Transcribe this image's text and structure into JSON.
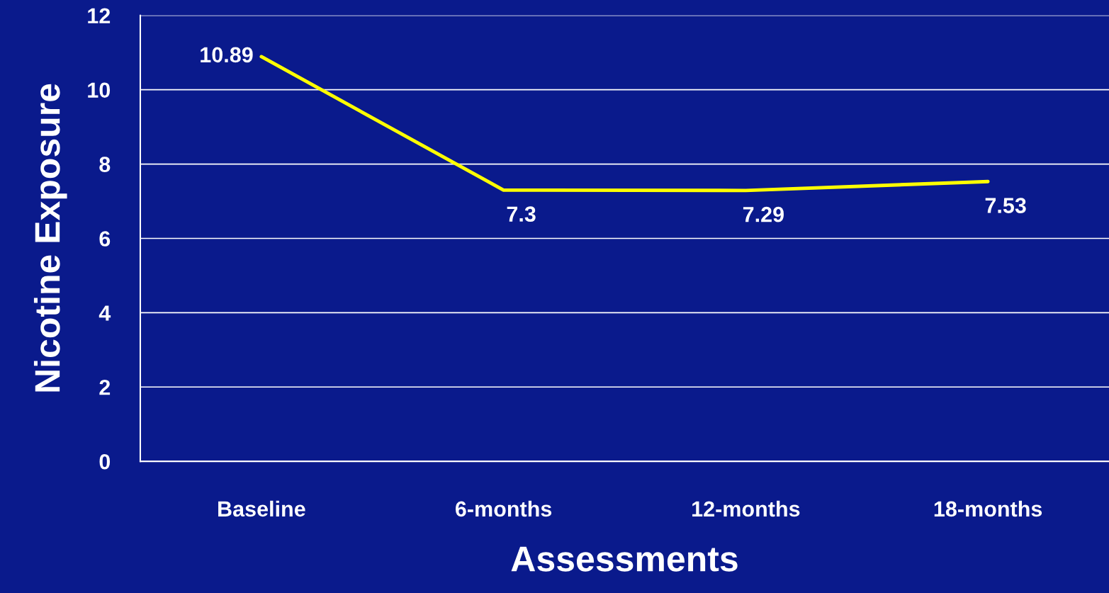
{
  "chart_data": {
    "type": "line",
    "xlabel": "Assessments",
    "ylabel": "Nicotine Exposure",
    "categories": [
      "Baseline",
      "6-months",
      "12-months",
      "18-months"
    ],
    "series": [
      {
        "color": "#ffff00",
        "values": [
          10.89,
          7.3,
          7.29,
          7.53
        ]
      }
    ],
    "ylim": [
      0,
      12
    ],
    "yticks": [
      0,
      2,
      4,
      6,
      8,
      10,
      12
    ],
    "grid": "y",
    "data_labels": true,
    "marker": "none",
    "line_style": "solid",
    "legend": false
  }
}
